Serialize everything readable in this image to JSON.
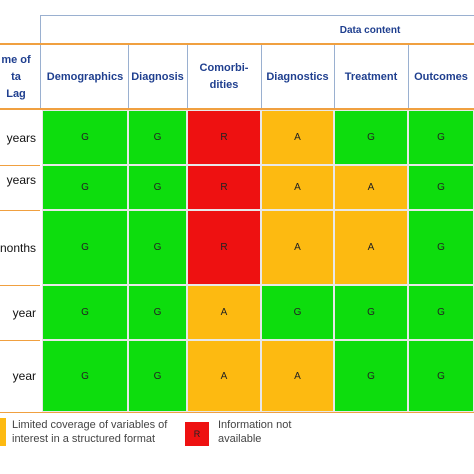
{
  "colors": {
    "G": "#0ddd0d",
    "A": "#fdba11",
    "R": "#ee1111",
    "orange_line": "#f0a040",
    "header_text": "#1f3f8f",
    "divider": "#9ab0d0"
  },
  "header": {
    "group_label": "Data content",
    "row_label_header": "me of\nta Lag",
    "columns": [
      "Demographics",
      "Diagnosis",
      "Comorbi-\ndities",
      "Diagnostics",
      "Treatment",
      "Outcomes"
    ]
  },
  "rows": [
    {
      "label": "years",
      "cells": [
        "G",
        "G",
        "R",
        "A",
        "G",
        "G"
      ]
    },
    {
      "label": "years",
      "cells": [
        "G",
        "G",
        "R",
        "A",
        "A",
        "G"
      ]
    },
    {
      "label": "nonths",
      "cells": [
        "G",
        "G",
        "R",
        "A",
        "A",
        "G"
      ]
    },
    {
      "label": "year",
      "cells": [
        "G",
        "G",
        "A",
        "G",
        "G",
        "G"
      ]
    },
    {
      "label": "year",
      "cells": [
        "G",
        "G",
        "A",
        "A",
        "G",
        "G"
      ]
    }
  ],
  "legend": [
    {
      "swatch": "A",
      "code": "",
      "text": "Limited coverage of variables of interest in a structured format"
    },
    {
      "swatch": "R",
      "code": "R",
      "text": "Information not available"
    }
  ]
}
